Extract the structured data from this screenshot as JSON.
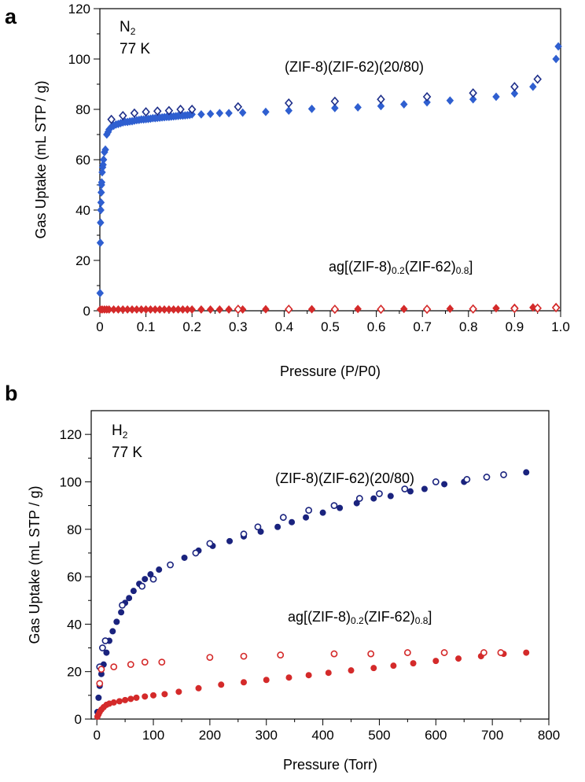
{
  "chart_data": [
    {
      "panel": "a",
      "type": "scatter",
      "gas": "N",
      "gas_sub": "2",
      "temperature": "77 K",
      "xlabel": "Pressure (P/P0)",
      "ylabel": "Gas Uptake (mL STP / g)",
      "xlim": [
        0,
        1.0
      ],
      "ylim": [
        0,
        120
      ],
      "xticks": [
        0,
        0.1,
        0.2,
        0.3,
        0.4,
        0.5,
        0.6,
        0.7,
        0.8,
        0.9,
        1.0
      ],
      "xtick_labels": [
        "0",
        "0.1",
        "0.2",
        "0.3",
        "0.4",
        "0.5",
        "0.6",
        "0.7",
        "0.8",
        "0.9",
        "1.0"
      ],
      "yticks": [
        0,
        20,
        40,
        60,
        80,
        100,
        120
      ],
      "ytick_labels": [
        "0",
        "20",
        "40",
        "60",
        "80",
        "100",
        "120"
      ],
      "series_labels": {
        "crystal": "(ZIF-8)(ZIF-62)(20/80)",
        "glass_prefix": "ag[(ZIF-8)",
        "glass_sub1": "0.2",
        "glass_mid": "(ZIF-62)",
        "glass_sub2": "0.8",
        "glass_suffix": "]"
      },
      "series": [
        {
          "name": "(ZIF-8)(ZIF-62)(20/80) adsorption",
          "color": "#2f5fd0",
          "marker": "diamond",
          "filled": true,
          "x": [
            0.0005,
            0.001,
            0.0015,
            0.002,
            0.0025,
            0.003,
            0.0035,
            0.004,
            0.005,
            0.006,
            0.007,
            0.008,
            0.01,
            0.012,
            0.015,
            0.018,
            0.02,
            0.025,
            0.03,
            0.035,
            0.04,
            0.045,
            0.05,
            0.055,
            0.06,
            0.065,
            0.07,
            0.075,
            0.08,
            0.085,
            0.09,
            0.095,
            0.1,
            0.105,
            0.11,
            0.115,
            0.12,
            0.125,
            0.13,
            0.135,
            0.14,
            0.145,
            0.15,
            0.155,
            0.16,
            0.165,
            0.17,
            0.175,
            0.18,
            0.185,
            0.19,
            0.195,
            0.2,
            0.22,
            0.24,
            0.26,
            0.28,
            0.31,
            0.36,
            0.41,
            0.46,
            0.51,
            0.56,
            0.61,
            0.66,
            0.71,
            0.76,
            0.81,
            0.86,
            0.9,
            0.94,
            0.99,
            0.995
          ],
          "y": [
            7,
            27,
            35,
            40,
            43,
            47,
            50,
            51,
            55,
            57,
            58,
            60,
            63,
            64,
            70,
            71,
            72,
            73,
            73.5,
            74,
            74.2,
            74.5,
            74.8,
            75,
            75,
            75.2,
            75.3,
            75.5,
            75.7,
            75.8,
            76,
            76,
            76.1,
            76.2,
            76.3,
            76.5,
            76.5,
            76.6,
            76.7,
            76.8,
            76.9,
            77,
            77,
            77.1,
            77.2,
            77.3,
            77.4,
            77.5,
            77.5,
            77.6,
            77.7,
            77.8,
            78,
            78,
            78.2,
            78.5,
            78.5,
            78.7,
            79,
            79.5,
            80.2,
            80.5,
            80.8,
            81.3,
            82,
            82.8,
            83.5,
            84,
            85,
            86.3,
            89,
            100,
            105
          ]
        },
        {
          "name": "(ZIF-8)(ZIF-62)(20/80) desorption",
          "color": "#1e2f8a",
          "marker": "diamond",
          "filled": false,
          "x": [
            0.025,
            0.05,
            0.075,
            0.1,
            0.125,
            0.15,
            0.175,
            0.2,
            0.3,
            0.41,
            0.51,
            0.61,
            0.71,
            0.81,
            0.9,
            0.95
          ],
          "y": [
            76,
            77.5,
            78.5,
            79,
            79.3,
            79.5,
            80,
            80,
            81,
            82.5,
            83.2,
            84,
            85,
            86.5,
            89,
            92
          ]
        },
        {
          "name": "ag[(ZIF-8)0.2(ZIF-62)0.8] adsorption",
          "color": "#d42a2a",
          "marker": "diamond",
          "filled": true,
          "x": [
            0.001,
            0.005,
            0.01,
            0.015,
            0.02,
            0.03,
            0.04,
            0.05,
            0.06,
            0.07,
            0.08,
            0.09,
            0.1,
            0.11,
            0.12,
            0.13,
            0.14,
            0.15,
            0.16,
            0.17,
            0.18,
            0.19,
            0.2,
            0.22,
            0.24,
            0.26,
            0.28,
            0.31,
            0.36,
            0.41,
            0.46,
            0.51,
            0.56,
            0.61,
            0.66,
            0.71,
            0.76,
            0.81,
            0.86,
            0.9,
            0.94,
            0.99
          ],
          "y": [
            0.5,
            0.5,
            0.5,
            0.5,
            0.5,
            0.5,
            0.5,
            0.5,
            0.5,
            0.5,
            0.5,
            0.5,
            0.5,
            0.5,
            0.5,
            0.5,
            0.5,
            0.5,
            0.5,
            0.5,
            0.5,
            0.5,
            0.5,
            0.5,
            0.5,
            0.5,
            0.5,
            0.5,
            0.6,
            0.6,
            0.6,
            0.6,
            0.7,
            0.7,
            0.7,
            0.7,
            0.8,
            0.8,
            1,
            1.2,
            1.3,
            1.5
          ]
        },
        {
          "name": "ag[(ZIF-8)0.2(ZIF-62)0.8] desorption",
          "color": "#d42a2a",
          "marker": "diamond",
          "filled": false,
          "x": [
            0.3,
            0.41,
            0.51,
            0.61,
            0.71,
            0.81,
            0.9,
            0.95,
            0.99
          ],
          "y": [
            0.6,
            0.6,
            0.6,
            0.6,
            0.6,
            0.7,
            0.9,
            1,
            1.2
          ]
        }
      ]
    },
    {
      "panel": "b",
      "type": "scatter",
      "gas": "H",
      "gas_sub": "2",
      "temperature": "77 K",
      "xlabel": "Pressure (Torr)",
      "ylabel": "Gas Uptake (mL STP / g)",
      "xlim": [
        -10,
        800
      ],
      "ylim": [
        0,
        130
      ],
      "xticks": [
        0,
        100,
        200,
        300,
        400,
        500,
        600,
        700,
        800
      ],
      "xtick_labels": [
        "0",
        "100",
        "200",
        "300",
        "400",
        "500",
        "600",
        "700",
        "800"
      ],
      "yticks": [
        0,
        20,
        40,
        60,
        80,
        100,
        120
      ],
      "ytick_labels": [
        "0",
        "20",
        "40",
        "60",
        "80",
        "100",
        "120"
      ],
      "series_labels": {
        "crystal": "(ZIF-8)(ZIF-62)(20/80)",
        "glass_prefix": "ag[(ZIF-8)",
        "glass_sub1": "0.2",
        "glass_mid": "(ZIF-62)",
        "glass_sub2": "0.8",
        "glass_suffix": "]"
      },
      "series": [
        {
          "name": "(ZIF-8)(ZIF-62)(20/80) adsorption",
          "color": "#1a237e",
          "marker": "circle",
          "filled": true,
          "x": [
            1,
            3,
            5,
            8,
            12,
            17,
            22,
            28,
            35,
            43,
            50,
            57,
            65,
            75,
            85,
            95,
            110,
            130,
            155,
            180,
            205,
            235,
            260,
            290,
            320,
            345,
            370,
            400,
            430,
            460,
            490,
            520,
            555,
            580,
            615,
            650,
            690,
            720,
            760
          ],
          "y": [
            3,
            9,
            14,
            19,
            23,
            28,
            33,
            37,
            41,
            45,
            49,
            51,
            54,
            57,
            59,
            61,
            63,
            65,
            68,
            71,
            73,
            75,
            77,
            79,
            81,
            83,
            85,
            87,
            89,
            91,
            93,
            94,
            96,
            97,
            99,
            100,
            102,
            103,
            104
          ]
        },
        {
          "name": "(ZIF-8)(ZIF-62)(20/80) desorption",
          "color": "#1a237e",
          "marker": "circle",
          "filled": false,
          "x": [
            5,
            10,
            15,
            45,
            80,
            100,
            130,
            175,
            200,
            260,
            285,
            330,
            375,
            420,
            465,
            500,
            545,
            600,
            655,
            690,
            720
          ],
          "y": [
            22,
            30,
            33,
            48,
            56,
            59,
            65,
            70,
            74,
            78,
            81,
            85,
            88,
            90,
            93,
            95,
            97,
            100,
            101,
            102,
            103
          ]
        },
        {
          "name": "ag[(ZIF-8)0.2(ZIF-62)0.8] adsorption",
          "color": "#d42a2a",
          "marker": "circle",
          "filled": true,
          "x": [
            1,
            3,
            5,
            8,
            12,
            17,
            22,
            30,
            40,
            50,
            60,
            70,
            85,
            100,
            120,
            145,
            180,
            220,
            260,
            300,
            340,
            375,
            410,
            450,
            490,
            525,
            560,
            600,
            640,
            680,
            720,
            760
          ],
          "y": [
            1,
            2,
            3,
            4,
            5,
            6,
            6.5,
            7,
            7.5,
            8,
            8.5,
            9,
            9.5,
            10,
            10.5,
            11.5,
            13,
            14.5,
            15.5,
            16.5,
            17.5,
            18.5,
            19.5,
            20.5,
            21.5,
            22.5,
            23.5,
            24.5,
            25.5,
            26.5,
            27.5,
            28
          ]
        },
        {
          "name": "ag[(ZIF-8)0.2(ZIF-62)0.8] desorption",
          "color": "#d42a2a",
          "marker": "circle",
          "filled": false,
          "x": [
            5,
            8,
            30,
            60,
            85,
            115,
            200,
            260,
            325,
            420,
            485,
            550,
            615,
            685,
            715
          ],
          "y": [
            15,
            21,
            22,
            23,
            24,
            24,
            26,
            26.5,
            27,
            27.5,
            27.5,
            28,
            28,
            28,
            28
          ]
        }
      ]
    }
  ]
}
